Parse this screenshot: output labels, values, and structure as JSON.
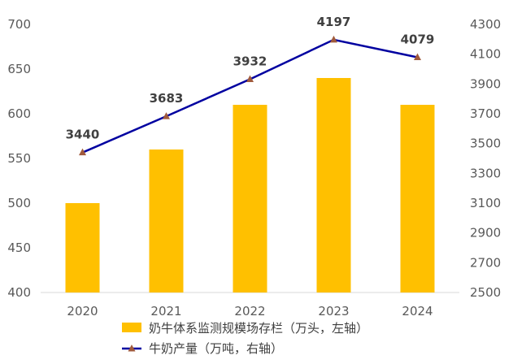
{
  "chart_data": {
    "type": "bar+line",
    "title": "",
    "categories": [
      "2020",
      "2021",
      "2022",
      "2023",
      "2024"
    ],
    "series": [
      {
        "name": "奶牛体系监测规模场存栏（万头，左轴）",
        "type": "bar",
        "axis": "left",
        "color": "#FFC000",
        "values": [
          500,
          560,
          610,
          640,
          610
        ]
      },
      {
        "name": "牛奶产量（万吨，右轴）",
        "type": "line",
        "axis": "right",
        "color": "#0000A0",
        "marker_color": "#A05A3C",
        "values": [
          3440,
          3683,
          3932,
          4197,
          4079
        ],
        "data_labels": [
          "3440",
          "3683",
          "3932",
          "4197",
          "4079"
        ]
      }
    ],
    "y_left": {
      "min": 400,
      "max": 700,
      "ticks": [
        "400",
        "450",
        "500",
        "550",
        "600",
        "650",
        "700"
      ]
    },
    "y_right": {
      "min": 2500,
      "max": 4300,
      "ticks": [
        "2500",
        "2700",
        "2900",
        "3100",
        "3300",
        "3500",
        "3700",
        "3900",
        "4100",
        "4300"
      ]
    },
    "grid": false,
    "legend_position": "bottom"
  }
}
